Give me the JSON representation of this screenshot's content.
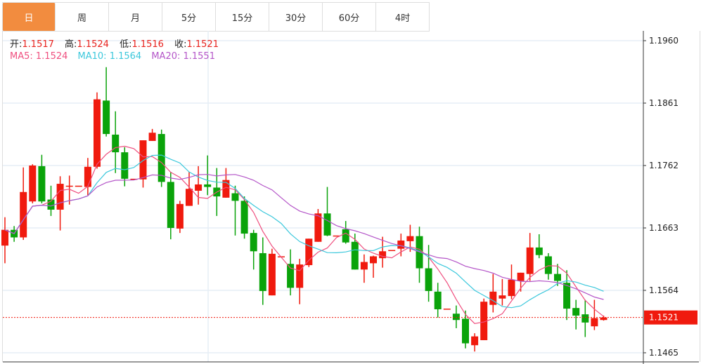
{
  "tabs": [
    {
      "label": "日",
      "active": true
    },
    {
      "label": "周"
    },
    {
      "label": "月"
    },
    {
      "label": "5分"
    },
    {
      "label": "15分"
    },
    {
      "label": "30分"
    },
    {
      "label": "60分"
    },
    {
      "label": "4时"
    }
  ],
  "ohlc": {
    "open_label": "开:",
    "open": "1.1517",
    "high_label": "高:",
    "high": "1.1524",
    "low_label": "低:",
    "low": "1.1516",
    "close_label": "收:",
    "close": "1.1521"
  },
  "ma": {
    "ma5": "MA5: 1.1524",
    "ma10": "MA10: 1.1564",
    "ma20": "MA20: 1.1551"
  },
  "colors": {
    "up": "#f01a0e",
    "down": "#0aa30a",
    "ma5": "#ef4f7f",
    "ma10": "#3cc8dc",
    "ma20": "#b455c8",
    "accent": "#f28c3f",
    "last_price_bg": "#f01a0e"
  },
  "chart_data": {
    "type": "candlestick",
    "yticks": [
      "1.1960",
      "1.1861",
      "1.1762",
      "1.1663",
      "1.1564",
      "1.1465"
    ],
    "ylim": [
      1.1465,
      1.196
    ],
    "last_price": "1.1521",
    "ma_periods": [
      5,
      10,
      20
    ],
    "candles": [
      [
        1.1635,
        1.168,
        1.1607,
        1.166
      ],
      [
        1.166,
        1.1666,
        1.1641,
        1.1648
      ],
      [
        1.1648,
        1.1759,
        1.1644,
        1.172
      ],
      [
        1.1705,
        1.1764,
        1.1702,
        1.1762
      ],
      [
        1.1761,
        1.1779,
        1.1702,
        1.1705
      ],
      [
        1.1708,
        1.173,
        1.1682,
        1.1692
      ],
      [
        1.1692,
        1.1745,
        1.1659,
        1.1733
      ],
      [
        1.173,
        1.1746,
        1.17,
        1.173
      ],
      [
        1.173,
        1.173,
        1.173,
        1.173
      ],
      [
        1.1728,
        1.1774,
        1.1715,
        1.176
      ],
      [
        1.176,
        1.1878,
        1.1757,
        1.1867
      ],
      [
        1.1865,
        1.1918,
        1.1808,
        1.1812
      ],
      [
        1.1811,
        1.1848,
        1.175,
        1.1783
      ],
      [
        1.1783,
        1.1791,
        1.1729,
        1.1741
      ],
      [
        1.1741,
        1.1741,
        1.1741,
        1.1741
      ],
      [
        1.174,
        1.1802,
        1.1727,
        1.1802
      ],
      [
        1.1801,
        1.182,
        1.1801,
        1.1814
      ],
      [
        1.1812,
        1.1819,
        1.1728,
        1.1736
      ],
      [
        1.1736,
        1.1752,
        1.1645,
        1.1663
      ],
      [
        1.1662,
        1.1706,
        1.1655,
        1.1701
      ],
      [
        1.1698,
        1.1752,
        1.1698,
        1.1725
      ],
      [
        1.1722,
        1.1761,
        1.17,
        1.1732
      ],
      [
        1.1732,
        1.1778,
        1.1715,
        1.1728
      ],
      [
        1.1727,
        1.1758,
        1.1682,
        1.1713
      ],
      [
        1.1711,
        1.1758,
        1.1711,
        1.1739
      ],
      [
        1.1718,
        1.173,
        1.1651,
        1.1706
      ],
      [
        1.1706,
        1.1713,
        1.1646,
        1.1654
      ],
      [
        1.1655,
        1.166,
        1.1597,
        1.1626
      ],
      [
        1.1623,
        1.1648,
        1.1541,
        1.1563
      ],
      [
        1.1556,
        1.163,
        1.1556,
        1.1622
      ],
      [
        1.1618,
        1.1618,
        1.1618,
        1.1618
      ],
      [
        1.1606,
        1.1629,
        1.1556,
        1.1568
      ],
      [
        1.1568,
        1.1614,
        1.1542,
        1.1605
      ],
      [
        1.1604,
        1.1646,
        1.1601,
        1.1646
      ],
      [
        1.1641,
        1.1693,
        1.1641,
        1.1686
      ],
      [
        1.1686,
        1.1728,
        1.165,
        1.1651
      ],
      [
        1.1651,
        1.1651,
        1.1651,
        1.1651
      ],
      [
        1.1661,
        1.1674,
        1.1638,
        1.164
      ],
      [
        1.1641,
        1.1654,
        1.1597,
        1.1597
      ],
      [
        1.1597,
        1.1621,
        1.1576,
        1.1609
      ],
      [
        1.1607,
        1.1619,
        1.1584,
        1.1618
      ],
      [
        1.1615,
        1.1649,
        1.16,
        1.1626
      ],
      [
        1.1628,
        1.1628,
        1.1628,
        1.1628
      ],
      [
        1.163,
        1.1654,
        1.1618,
        1.1643
      ],
      [
        1.1642,
        1.1668,
        1.1625,
        1.165
      ],
      [
        1.165,
        1.1665,
        1.1576,
        1.1599
      ],
      [
        1.1599,
        1.1636,
        1.1546,
        1.1563
      ],
      [
        1.1562,
        1.1576,
        1.1521,
        1.1534
      ],
      [
        1.1535,
        1.1535,
        1.1535,
        1.1535
      ],
      [
        1.1527,
        1.154,
        1.1504,
        1.1517
      ],
      [
        1.1519,
        1.1532,
        1.1472,
        1.148
      ],
      [
        1.1477,
        1.1496,
        1.1467,
        1.1491
      ],
      [
        1.1485,
        1.1551,
        1.1485,
        1.1546
      ],
      [
        1.1541,
        1.159,
        1.1529,
        1.1562
      ],
      [
        1.1551,
        1.1582,
        1.154,
        1.1556
      ],
      [
        1.1555,
        1.1605,
        1.155,
        1.1581
      ],
      [
        1.1579,
        1.1592,
        1.1562,
        1.1592
      ],
      [
        1.159,
        1.1655,
        1.1579,
        1.1632
      ],
      [
        1.1632,
        1.1653,
        1.1615,
        1.162
      ],
      [
        1.1618,
        1.1623,
        1.1581,
        1.159
      ],
      [
        1.159,
        1.1606,
        1.1571,
        1.1579
      ],
      [
        1.1576,
        1.1596,
        1.1517,
        1.1535
      ],
      [
        1.1536,
        1.1549,
        1.1502,
        1.1524
      ],
      [
        1.1526,
        1.1549,
        1.149,
        1.1513
      ],
      [
        1.1507,
        1.1549,
        1.1501,
        1.152
      ],
      [
        1.1517,
        1.1524,
        1.1516,
        1.1521
      ]
    ]
  }
}
